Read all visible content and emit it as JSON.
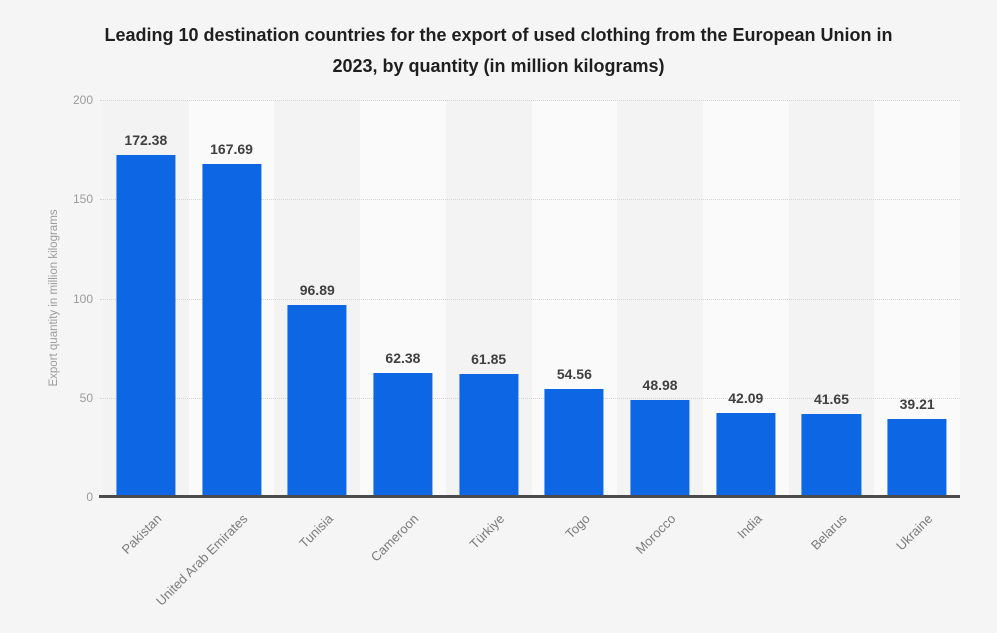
{
  "title": "Leading 10 destination countries for the export of used clothing from the European Union in 2023, by quantity (in million kilograms)",
  "y_axis_label": "Export quantity in million kilograms",
  "colors": {
    "background": "#f5f5f5",
    "bar": "#0d66e4",
    "title_text": "#1f1f1f",
    "value_label": "#3f3f3f",
    "category_label": "#7b7b7b",
    "tick_label": "#9b9b9b",
    "gridline": "#d4d4d4",
    "baseline": "#4b4b4b",
    "stripe_odd": "#f3f3f3",
    "stripe_even": "#fafafa"
  },
  "chart_data": {
    "type": "bar",
    "title": "Leading 10 destination countries for the export of used clothing from the European Union in 2023, by quantity (in million kilograms)",
    "categories": [
      "Pakistan",
      "United Arab Emirates",
      "Tunisia",
      "Cameroon",
      "Türkiye",
      "Togo",
      "Morocco",
      "India",
      "Belarus",
      "Ukraine"
    ],
    "values": [
      172.38,
      167.69,
      96.89,
      62.38,
      61.85,
      54.56,
      48.98,
      42.09,
      41.65,
      39.21
    ],
    "xlabel": "",
    "ylabel": "Export quantity in million kilograms",
    "ylim": [
      0,
      200
    ],
    "yticks": [
      200,
      150,
      100,
      50,
      0
    ],
    "grid": "horizontal-dotted",
    "legend": "none",
    "value_labels_shown": true,
    "x_label_rotation_deg": -45
  }
}
